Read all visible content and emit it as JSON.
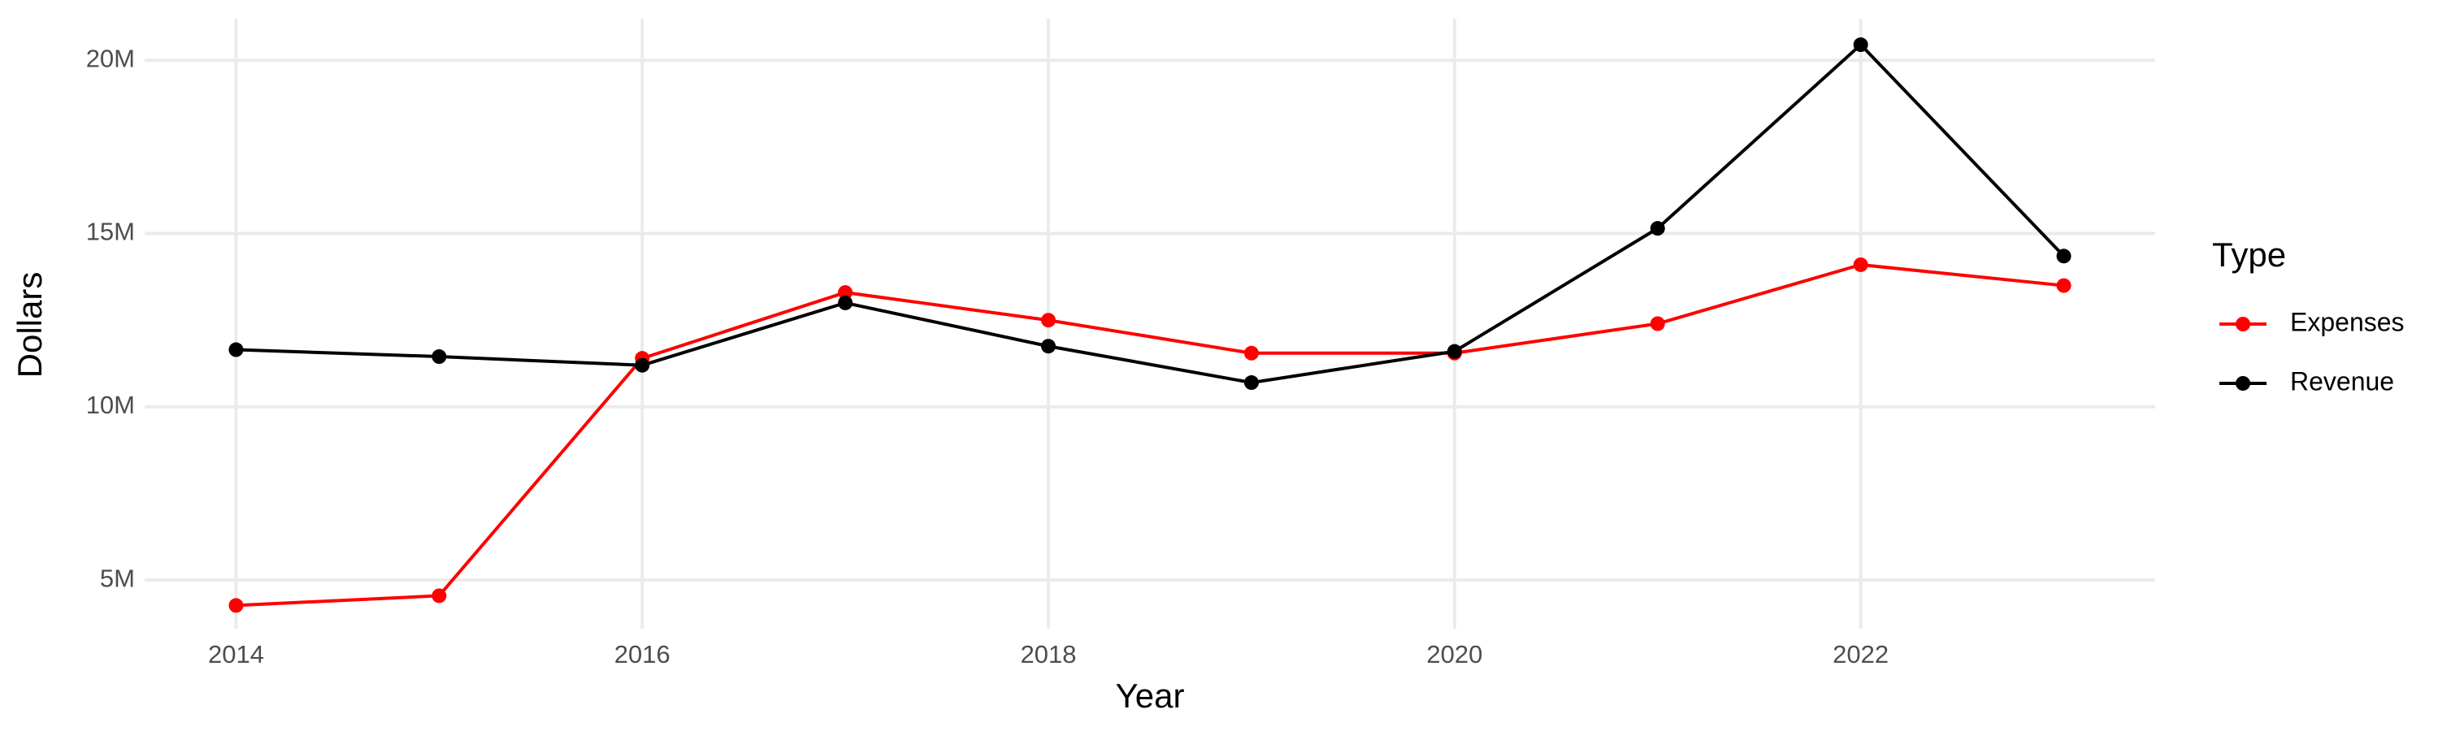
{
  "chart_data": {
    "type": "line",
    "x_label": "Year",
    "y_label": "Dollars",
    "legend_title": "Type",
    "legend": "right",
    "grid": true,
    "x": [
      2014,
      2015,
      2016,
      2017,
      2018,
      2019,
      2020,
      2021,
      2022,
      2023
    ],
    "series": [
      {
        "name": "Expenses",
        "color": "#ff0000",
        "values": [
          4270000,
          4550000,
          11400000,
          13300000,
          12500000,
          11550000,
          11550000,
          12400000,
          14100000,
          13500000
        ]
      },
      {
        "name": "Revenue",
        "color": "#000000",
        "values": [
          11650000,
          11450000,
          11200000,
          13000000,
          11750000,
          10700000,
          11600000,
          15150000,
          20450000,
          14350000
        ]
      }
    ],
    "xlim": [
      2013.55,
      2023.45
    ],
    "xticks": [
      2014,
      2016,
      2018,
      2020,
      2022
    ],
    "ylim": [
      3600000,
      21200000
    ],
    "yticks": [
      {
        "value": 5000000,
        "label": "5M"
      },
      {
        "value": 10000000,
        "label": "10M"
      },
      {
        "value": 15000000,
        "label": "15M"
      },
      {
        "value": 20000000,
        "label": "20M"
      }
    ]
  }
}
